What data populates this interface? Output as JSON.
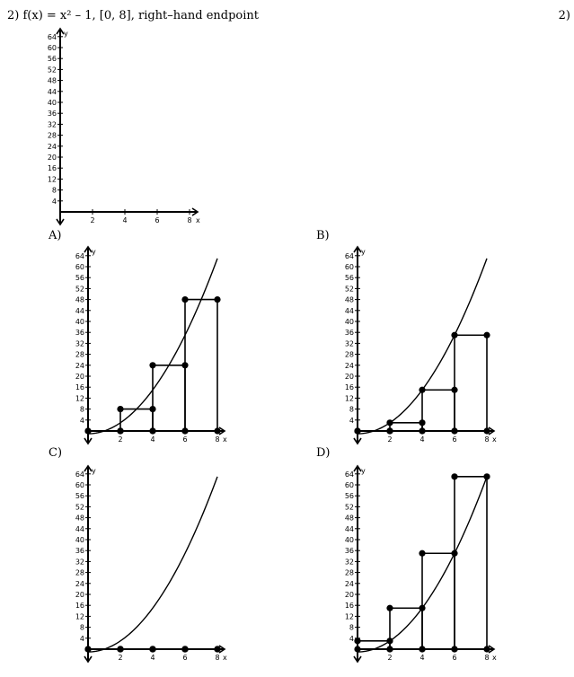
{
  "question": {
    "number": "2)",
    "text": "f(x) = x² – 1, [0, 8], right–hand endpoint",
    "right_number": "2)"
  },
  "options": {
    "A": "A)",
    "B": "B)",
    "C": "C)",
    "D": "D)"
  },
  "axis": {
    "y_ticks": [
      "64",
      "60",
      "56",
      "52",
      "48",
      "44",
      "40",
      "36",
      "32",
      "28",
      "24",
      "20",
      "16",
      "12",
      "8",
      "4"
    ],
    "x_ticks": [
      "2",
      "4",
      "6",
      "8"
    ],
    "x_label": "x",
    "y_label": "y"
  },
  "chart_data": [
    {
      "id": "blank",
      "type": "line",
      "title": "",
      "xlim": [
        0,
        8
      ],
      "ylim": [
        0,
        64
      ],
      "curve": false,
      "rectangles": []
    },
    {
      "id": "A",
      "type": "line",
      "function": "x^2 - 1",
      "xlim": [
        0,
        8
      ],
      "ylim": [
        0,
        64
      ],
      "curve": true,
      "rectangles": [
        {
          "x0": 0,
          "x1": 2,
          "height": 0
        },
        {
          "x0": 2,
          "x1": 4,
          "height": 8
        },
        {
          "x0": 4,
          "x1": 6,
          "height": 24
        },
        {
          "x0": 6,
          "x1": 8,
          "height": 48
        }
      ]
    },
    {
      "id": "B",
      "type": "line",
      "function": "x^2 - 1",
      "xlim": [
        0,
        8
      ],
      "ylim": [
        0,
        64
      ],
      "curve": true,
      "rectangles": [
        {
          "x0": 0,
          "x1": 2,
          "height": 0
        },
        {
          "x0": 2,
          "x1": 4,
          "height": 3
        },
        {
          "x0": 4,
          "x1": 6,
          "height": 15
        },
        {
          "x0": 6,
          "x1": 8,
          "height": 35
        }
      ]
    },
    {
      "id": "C",
      "type": "line",
      "function": "x^2 - 1",
      "xlim": [
        0,
        8
      ],
      "ylim": [
        0,
        64
      ],
      "curve": true,
      "rectangles": [
        {
          "x0": 0,
          "x1": 2,
          "height": 0
        },
        {
          "x0": 2,
          "x1": 4,
          "height": 0
        },
        {
          "x0": 4,
          "x1": 6,
          "height": 0
        },
        {
          "x0": 6,
          "x1": 8,
          "height": 0
        }
      ]
    },
    {
      "id": "D",
      "type": "line",
      "function": "x^2 - 1",
      "xlim": [
        0,
        8
      ],
      "ylim": [
        0,
        64
      ],
      "curve": true,
      "rectangles": [
        {
          "x0": 0,
          "x1": 2,
          "height": 3
        },
        {
          "x0": 2,
          "x1": 4,
          "height": 15
        },
        {
          "x0": 4,
          "x1": 6,
          "height": 35
        },
        {
          "x0": 6,
          "x1": 8,
          "height": 63
        }
      ]
    }
  ]
}
